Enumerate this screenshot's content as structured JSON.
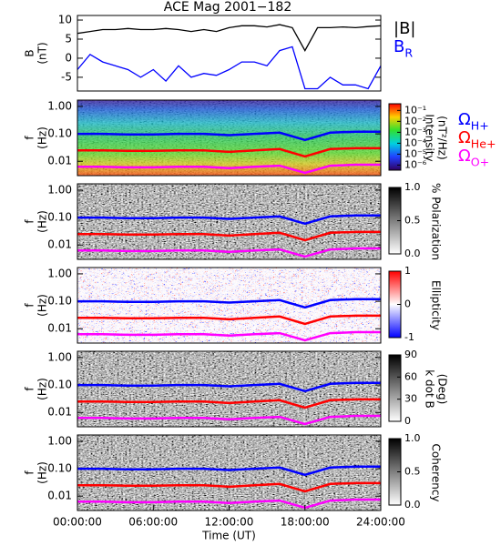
{
  "chart_data": [
    {
      "type": "line",
      "title": "ACE Mag 2001−182",
      "ylabel": [
        "B",
        "(nT)"
      ],
      "x": [
        0,
        1,
        2,
        3,
        4,
        5,
        6,
        7,
        8,
        9,
        10,
        11,
        12,
        13,
        14,
        15,
        16,
        17,
        18,
        19,
        20,
        21,
        22,
        23,
        24
      ],
      "xlim": [
        0,
        24
      ],
      "ylim": [
        -8.6,
        11.2
      ],
      "yticks": [
        10,
        5,
        0,
        -5
      ],
      "series": [
        {
          "name": "|B|",
          "color": "#000000",
          "values": [
            6.5,
            7,
            7.5,
            7.5,
            7.8,
            7.5,
            7.5,
            7.8,
            7.5,
            7,
            7.5,
            7,
            8,
            8.5,
            8.5,
            8.2,
            8.8,
            8,
            2,
            8,
            8,
            8.2,
            8,
            8.3,
            8.5
          ]
        },
        {
          "name": "B",
          "subscript": "R",
          "color": "#0000ff",
          "values": [
            -3,
            1,
            -1,
            -2,
            -3,
            -5,
            -3,
            -6,
            -2,
            -5,
            -4,
            -4.5,
            -3,
            -1,
            -1,
            -2,
            2,
            3,
            -8,
            -8,
            -5,
            -7,
            -7,
            -8,
            -2
          ]
        }
      ]
    },
    {
      "type": "spectrogram",
      "colormap": "rainbow",
      "ylabel": [
        "f",
        "(Hz)"
      ],
      "log": true,
      "xlim": [
        0,
        24
      ],
      "ylim": [
        0.003,
        1.7
      ],
      "yticks": [
        {
          "value": 1,
          "label": "1.00"
        },
        {
          "value": 0.1,
          "label": "0.10"
        },
        {
          "value": 0.01,
          "label": "0.01"
        }
      ],
      "colorbar_label": [
        "Intensity",
        "(nT²/Hz)"
      ],
      "colorbar_log": true,
      "clim": [
        3.4e-07,
        0.41
      ],
      "cticks": [
        {
          "value": 0.1,
          "label": "10⁻¹"
        },
        {
          "value": 0.01,
          "label": "10⁻²"
        },
        {
          "value": 0.001,
          "label": "10⁻³"
        },
        {
          "value": 0.0001,
          "label": "10⁻⁴"
        },
        {
          "value": 1e-05,
          "label": "10⁻⁵"
        },
        {
          "value": 1e-06,
          "label": "10⁻⁶"
        }
      ],
      "legend": true,
      "x": [
        0,
        2,
        4,
        6,
        8,
        10,
        12,
        14,
        16,
        18,
        20,
        22,
        24
      ],
      "series": [
        {
          "name": "Ω",
          "subscript": "H+",
          "color": "#0000ff",
          "values": [
            0.1,
            0.1,
            0.095,
            0.095,
            0.1,
            0.1,
            0.09,
            0.1,
            0.11,
            0.06,
            0.11,
            0.12,
            0.12
          ]
        },
        {
          "name": "Ω",
          "subscript": "He+",
          "color": "#ff0000",
          "values": [
            0.025,
            0.025,
            0.024,
            0.024,
            0.025,
            0.025,
            0.022,
            0.025,
            0.028,
            0.015,
            0.028,
            0.03,
            0.03
          ]
        },
        {
          "name": "Ω",
          "subscript": "O+",
          "color": "#ff00ff",
          "values": [
            0.0063,
            0.0063,
            0.006,
            0.006,
            0.0063,
            0.0063,
            0.0056,
            0.0063,
            0.0069,
            0.0038,
            0.0069,
            0.0075,
            0.0075
          ]
        }
      ]
    },
    {
      "type": "spectrogram",
      "colormap": "gray",
      "ylabel": [
        "f",
        "(Hz)"
      ],
      "log": true,
      "xlim": [
        0,
        24
      ],
      "ylim": [
        0.003,
        1.7
      ],
      "yticks": [
        {
          "value": 1,
          "label": "1.00"
        },
        {
          "value": 0.1,
          "label": "0.10"
        },
        {
          "value": 0.01,
          "label": "0.01"
        }
      ],
      "colorbar_label": [
        "% Polarization"
      ],
      "colorbar_log": false,
      "clim": [
        0,
        1
      ],
      "cticks": [
        {
          "value": 1,
          "label": "1.0"
        },
        0.5,
        {
          "value": 0,
          "label": "0.0"
        }
      ],
      "legend": false,
      "x": [
        0,
        2,
        4,
        6,
        8,
        10,
        12,
        14,
        16,
        18,
        20,
        22,
        24
      ],
      "series": [
        {
          "color": "#0000ff",
          "values": [
            0.1,
            0.1,
            0.095,
            0.095,
            0.1,
            0.1,
            0.09,
            0.1,
            0.11,
            0.06,
            0.11,
            0.12,
            0.12
          ]
        },
        {
          "color": "#ff0000",
          "values": [
            0.025,
            0.025,
            0.024,
            0.024,
            0.025,
            0.025,
            0.022,
            0.025,
            0.028,
            0.015,
            0.028,
            0.03,
            0.03
          ]
        },
        {
          "color": "#ff00ff",
          "values": [
            0.0063,
            0.0063,
            0.006,
            0.006,
            0.0063,
            0.0063,
            0.0056,
            0.0063,
            0.0069,
            0.0038,
            0.0069,
            0.0075,
            0.0075
          ]
        }
      ]
    },
    {
      "type": "spectrogram",
      "colormap": "redblue",
      "ylabel": [
        "f",
        "(Hz)"
      ],
      "log": true,
      "xlim": [
        0,
        24
      ],
      "ylim": [
        0.003,
        1.7
      ],
      "yticks": [
        {
          "value": 1,
          "label": "1.00"
        },
        {
          "value": 0.1,
          "label": "0.10"
        },
        {
          "value": 0.01,
          "label": "0.01"
        }
      ],
      "colorbar_label": [
        "Ellipticity"
      ],
      "colorbar_log": false,
      "clim": [
        -1,
        1
      ],
      "cticks": [
        1,
        0,
        -1
      ],
      "legend": false,
      "x": [
        0,
        2,
        4,
        6,
        8,
        10,
        12,
        14,
        16,
        18,
        20,
        22,
        24
      ],
      "series": [
        {
          "color": "#0000ff",
          "values": [
            0.1,
            0.1,
            0.095,
            0.095,
            0.1,
            0.1,
            0.09,
            0.1,
            0.11,
            0.06,
            0.11,
            0.12,
            0.12
          ]
        },
        {
          "color": "#ff0000",
          "values": [
            0.025,
            0.025,
            0.024,
            0.024,
            0.025,
            0.025,
            0.022,
            0.025,
            0.028,
            0.015,
            0.028,
            0.03,
            0.03
          ]
        },
        {
          "color": "#ff00ff",
          "values": [
            0.0063,
            0.0063,
            0.006,
            0.006,
            0.0063,
            0.0063,
            0.0056,
            0.0063,
            0.0069,
            0.0038,
            0.0069,
            0.0075,
            0.0075
          ]
        }
      ]
    },
    {
      "type": "spectrogram",
      "colormap": "gray",
      "ylabel": [
        "f",
        "(Hz)"
      ],
      "log": true,
      "xlim": [
        0,
        24
      ],
      "ylim": [
        0.003,
        1.7
      ],
      "yticks": [
        {
          "value": 1,
          "label": "1.00"
        },
        {
          "value": 0.1,
          "label": "0.10"
        },
        {
          "value": 0.01,
          "label": "0.01"
        }
      ],
      "colorbar_label": [
        "k dot B",
        "(Deg)"
      ],
      "colorbar_log": false,
      "clim": [
        0,
        90
      ],
      "cticks": [
        90,
        60,
        30,
        0
      ],
      "legend": false,
      "x": [
        0,
        2,
        4,
        6,
        8,
        10,
        12,
        14,
        16,
        18,
        20,
        22,
        24
      ],
      "series": [
        {
          "color": "#0000ff",
          "values": [
            0.1,
            0.1,
            0.095,
            0.095,
            0.1,
            0.1,
            0.09,
            0.1,
            0.11,
            0.06,
            0.11,
            0.12,
            0.12
          ]
        },
        {
          "color": "#ff0000",
          "values": [
            0.025,
            0.025,
            0.024,
            0.024,
            0.025,
            0.025,
            0.022,
            0.025,
            0.028,
            0.015,
            0.028,
            0.03,
            0.03
          ]
        },
        {
          "color": "#ff00ff",
          "values": [
            0.0063,
            0.0063,
            0.006,
            0.006,
            0.0063,
            0.0063,
            0.0056,
            0.0063,
            0.0069,
            0.0038,
            0.0069,
            0.0075,
            0.0075
          ]
        }
      ]
    },
    {
      "type": "spectrogram",
      "colormap": "gray",
      "ylabel": [
        "f",
        "(Hz)"
      ],
      "log": true,
      "xlim": [
        0,
        24
      ],
      "ylim": [
        0.003,
        1.7
      ],
      "yticks": [
        {
          "value": 1,
          "label": "1.00"
        },
        {
          "value": 0.1,
          "label": "0.10"
        },
        {
          "value": 0.01,
          "label": "0.01"
        }
      ],
      "colorbar_label": [
        "Coherency"
      ],
      "colorbar_log": false,
      "clim": [
        0,
        1
      ],
      "cticks": [
        {
          "value": 1,
          "label": "1.0"
        },
        0.5,
        {
          "value": 0,
          "label": "0.0"
        }
      ],
      "legend": false,
      "x": [
        0,
        2,
        4,
        6,
        8,
        10,
        12,
        14,
        16,
        18,
        20,
        22,
        24
      ],
      "xlabel": "Time (UT)",
      "xticks": [
        {
          "value": 0,
          "label": "00:00:00"
        },
        {
          "value": 6,
          "label": "06:00:00"
        },
        {
          "value": 12,
          "label": "12:00:00"
        },
        {
          "value": 18,
          "label": "18:00:00"
        },
        {
          "value": 24,
          "label": "24:00:00"
        }
      ],
      "series": [
        {
          "color": "#0000ff",
          "values": [
            0.1,
            0.1,
            0.095,
            0.095,
            0.1,
            0.1,
            0.09,
            0.1,
            0.11,
            0.06,
            0.11,
            0.12,
            0.12
          ]
        },
        {
          "color": "#ff0000",
          "values": [
            0.025,
            0.025,
            0.024,
            0.024,
            0.025,
            0.025,
            0.022,
            0.025,
            0.028,
            0.015,
            0.028,
            0.03,
            0.03
          ]
        },
        {
          "color": "#ff00ff",
          "values": [
            0.0063,
            0.0063,
            0.006,
            0.006,
            0.0063,
            0.0063,
            0.0056,
            0.0063,
            0.0069,
            0.0038,
            0.0069,
            0.0075,
            0.0075
          ]
        }
      ]
    }
  ]
}
